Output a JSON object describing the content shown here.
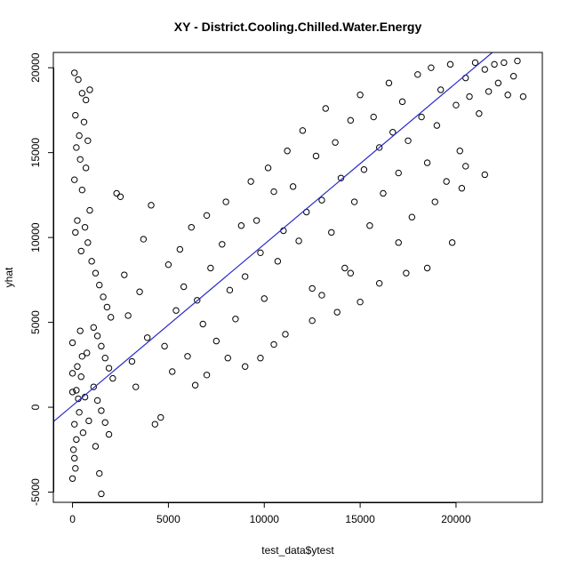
{
  "chart_data": {
    "type": "scatter",
    "title": "XY - District.Cooling.Chilled.Water.Energy",
    "xlabel": "test_data$ytest",
    "ylabel": "yhat",
    "xlim": [
      -1000,
      24500
    ],
    "ylim": [
      -5600,
      20900
    ],
    "x_ticks": [
      0,
      5000,
      10000,
      15000,
      20000
    ],
    "x_tick_labels": [
      "0",
      "5000",
      "10000",
      "15000",
      "20000"
    ],
    "y_ticks": [
      -5000,
      0,
      5000,
      10000,
      15000,
      20000
    ],
    "y_tick_labels": [
      "-5000",
      "0",
      "5000",
      "10000",
      "15000",
      "20000"
    ],
    "grid": false,
    "legend": "none",
    "marker": "open-circle",
    "marker_color": "#000000",
    "reference_line": {
      "slope": 0.95,
      "intercept": 100,
      "color": "#2a2ac8"
    },
    "series": [
      {
        "points": [
          [
            0,
            3800
          ],
          [
            0,
            2000
          ],
          [
            100,
            -1000
          ],
          [
            200,
            -1900
          ],
          [
            0,
            -4200
          ],
          [
            100,
            -3000
          ],
          [
            200,
            1000
          ],
          [
            300,
            500
          ],
          [
            500,
            3000
          ],
          [
            400,
            4500
          ],
          [
            0,
            900
          ],
          [
            50,
            -2500
          ],
          [
            150,
            -3600
          ],
          [
            250,
            2400
          ],
          [
            350,
            -300
          ],
          [
            450,
            1800
          ],
          [
            550,
            -1500
          ],
          [
            650,
            600
          ],
          [
            750,
            3200
          ],
          [
            850,
            -800
          ],
          [
            100,
            19700
          ],
          [
            300,
            19300
          ],
          [
            500,
            18500
          ],
          [
            700,
            18100
          ],
          [
            900,
            18700
          ],
          [
            150,
            17200
          ],
          [
            600,
            16800
          ],
          [
            350,
            16000
          ],
          [
            800,
            15700
          ],
          [
            200,
            15300
          ],
          [
            400,
            14600
          ],
          [
            700,
            14100
          ],
          [
            100,
            13400
          ],
          [
            500,
            12800
          ],
          [
            900,
            11600
          ],
          [
            250,
            11000
          ],
          [
            650,
            10600
          ],
          [
            150,
            10300
          ],
          [
            800,
            9700
          ],
          [
            450,
            9200
          ],
          [
            1000,
            8600
          ],
          [
            1200,
            7900
          ],
          [
            1400,
            7200
          ],
          [
            1600,
            6500
          ],
          [
            1800,
            5900
          ],
          [
            2000,
            5300
          ],
          [
            1100,
            4700
          ],
          [
            1300,
            4200
          ],
          [
            1500,
            3600
          ],
          [
            1700,
            2900
          ],
          [
            1900,
            2300
          ],
          [
            2100,
            1700
          ],
          [
            1100,
            1200
          ],
          [
            1300,
            400
          ],
          [
            1500,
            -200
          ],
          [
            1700,
            -900
          ],
          [
            1900,
            -1600
          ],
          [
            1200,
            -2300
          ],
          [
            1400,
            -3900
          ],
          [
            1500,
            -5100
          ],
          [
            2300,
            12600
          ],
          [
            2500,
            12400
          ],
          [
            2700,
            7800
          ],
          [
            2900,
            5400
          ],
          [
            3100,
            2700
          ],
          [
            3300,
            1200
          ],
          [
            3500,
            6800
          ],
          [
            3700,
            9900
          ],
          [
            3900,
            4100
          ],
          [
            4100,
            11900
          ],
          [
            4300,
            -1000
          ],
          [
            4600,
            -600
          ],
          [
            4800,
            3600
          ],
          [
            5000,
            8400
          ],
          [
            5200,
            2100
          ],
          [
            5400,
            5700
          ],
          [
            5600,
            9300
          ],
          [
            5800,
            7100
          ],
          [
            6000,
            3000
          ],
          [
            6200,
            10600
          ],
          [
            6500,
            6300
          ],
          [
            6800,
            4900
          ],
          [
            7000,
            11300
          ],
          [
            7200,
            8200
          ],
          [
            7500,
            3900
          ],
          [
            7800,
            9600
          ],
          [
            8000,
            12100
          ],
          [
            8200,
            6900
          ],
          [
            8500,
            5200
          ],
          [
            8800,
            10700
          ],
          [
            9000,
            7700
          ],
          [
            9300,
            13300
          ],
          [
            9600,
            11000
          ],
          [
            9800,
            9100
          ],
          [
            10000,
            6400
          ],
          [
            10200,
            14100
          ],
          [
            10500,
            12700
          ],
          [
            10700,
            8600
          ],
          [
            11000,
            10400
          ],
          [
            11200,
            15100
          ],
          [
            11500,
            13000
          ],
          [
            11800,
            9800
          ],
          [
            12000,
            16300
          ],
          [
            12200,
            11500
          ],
          [
            12500,
            7000
          ],
          [
            12700,
            14800
          ],
          [
            13000,
            12200
          ],
          [
            13200,
            17600
          ],
          [
            13500,
            10300
          ],
          [
            13700,
            15600
          ],
          [
            14000,
            13500
          ],
          [
            14200,
            8200
          ],
          [
            14500,
            16900
          ],
          [
            14700,
            12100
          ],
          [
            15000,
            18400
          ],
          [
            15200,
            14000
          ],
          [
            15500,
            10700
          ],
          [
            15700,
            17100
          ],
          [
            16000,
            15300
          ],
          [
            16200,
            12600
          ],
          [
            16500,
            19100
          ],
          [
            16700,
            16200
          ],
          [
            17000,
            13800
          ],
          [
            17200,
            18000
          ],
          [
            17500,
            15700
          ],
          [
            17700,
            11200
          ],
          [
            18000,
            19600
          ],
          [
            18200,
            17100
          ],
          [
            18500,
            14400
          ],
          [
            18700,
            20000
          ],
          [
            19000,
            16600
          ],
          [
            19200,
            18700
          ],
          [
            19500,
            13300
          ],
          [
            19700,
            20200
          ],
          [
            20000,
            17800
          ],
          [
            20200,
            15100
          ],
          [
            20500,
            19400
          ],
          [
            20700,
            18300
          ],
          [
            21000,
            20300
          ],
          [
            21200,
            17300
          ],
          [
            21500,
            19900
          ],
          [
            21700,
            18600
          ],
          [
            22000,
            20200
          ],
          [
            22200,
            19100
          ],
          [
            22500,
            20300
          ],
          [
            22700,
            18400
          ],
          [
            23000,
            19500
          ],
          [
            23200,
            20400
          ],
          [
            23500,
            18300
          ],
          [
            20300,
            12900
          ],
          [
            19800,
            9700
          ],
          [
            18500,
            8200
          ],
          [
            17400,
            7900
          ],
          [
            16000,
            7300
          ],
          [
            15000,
            6200
          ],
          [
            13800,
            5600
          ],
          [
            12500,
            5100
          ],
          [
            11100,
            4300
          ],
          [
            9800,
            2900
          ],
          [
            9000,
            2400
          ],
          [
            6400,
            1300
          ],
          [
            7000,
            1900
          ],
          [
            8100,
            2900
          ],
          [
            10500,
            3700
          ],
          [
            13000,
            6600
          ],
          [
            14500,
            7900
          ],
          [
            17000,
            9700
          ],
          [
            18900,
            12100
          ],
          [
            21500,
            13700
          ],
          [
            20500,
            14200
          ]
        ]
      }
    ]
  }
}
